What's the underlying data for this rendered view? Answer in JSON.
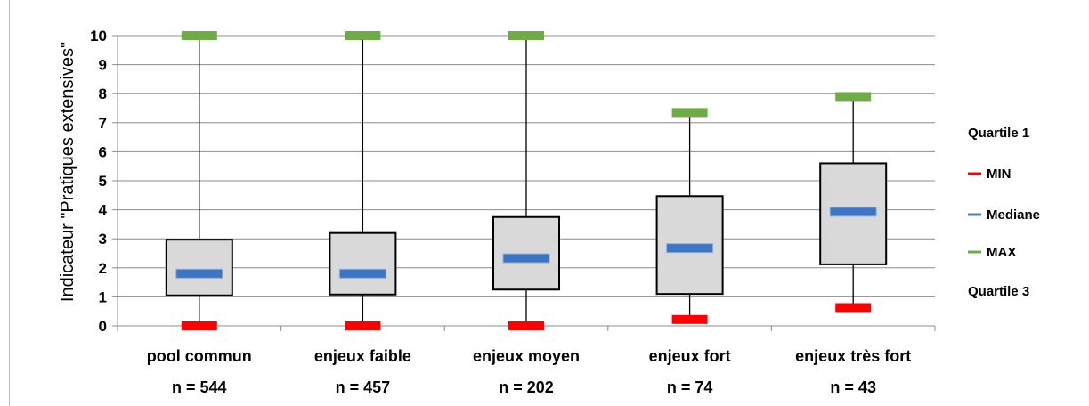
{
  "chart_data": {
    "type": "boxplot",
    "ylabel": "Indicateur \"Pratiques extensives\"",
    "xlabel": "",
    "title": "",
    "ylim": [
      0,
      10
    ],
    "yticks": [
      0,
      1,
      2,
      3,
      4,
      5,
      6,
      7,
      8,
      9,
      10
    ],
    "grid": "horizontal",
    "legend_position": "right",
    "categories": [
      {
        "label": "pool commun",
        "n_label": "n = 544",
        "min": 0,
        "q1": 1.05,
        "median": 1.8,
        "q3": 2.97,
        "max": 10
      },
      {
        "label": "enjeux faible",
        "n_label": "n = 457",
        "min": 0,
        "q1": 1.08,
        "median": 1.8,
        "q3": 3.2,
        "max": 10
      },
      {
        "label": "enjeux moyen",
        "n_label": "n = 202",
        "min": 0,
        "q1": 1.25,
        "median": 2.33,
        "q3": 3.75,
        "max": 10
      },
      {
        "label": "enjeux fort",
        "n_label": "n = 74",
        "min": 0.22,
        "q1": 1.1,
        "median": 2.68,
        "q3": 4.47,
        "max": 7.35
      },
      {
        "label": "enjeux très fort",
        "n_label": "n = 43",
        "min": 0.63,
        "q1": 2.12,
        "median": 3.93,
        "q3": 5.6,
        "max": 7.9
      }
    ],
    "legend": [
      {
        "label": "Quartile 1",
        "marker": "none",
        "color": ""
      },
      {
        "label": "MIN",
        "marker": "line",
        "color": "#ff0000"
      },
      {
        "label": "Mediane",
        "marker": "line",
        "color": "#4a7cc0"
      },
      {
        "label": "MAX",
        "marker": "line",
        "color": "#6fac46"
      },
      {
        "label": "Quartile 3",
        "marker": "none",
        "color": ""
      }
    ],
    "colors": {
      "min": "#ff0000",
      "median": "#3e75c3",
      "max": "#6fac46",
      "box_fill": "#d9d9d9",
      "box_stroke": "#000000",
      "grid": "#8c8c8c"
    }
  }
}
